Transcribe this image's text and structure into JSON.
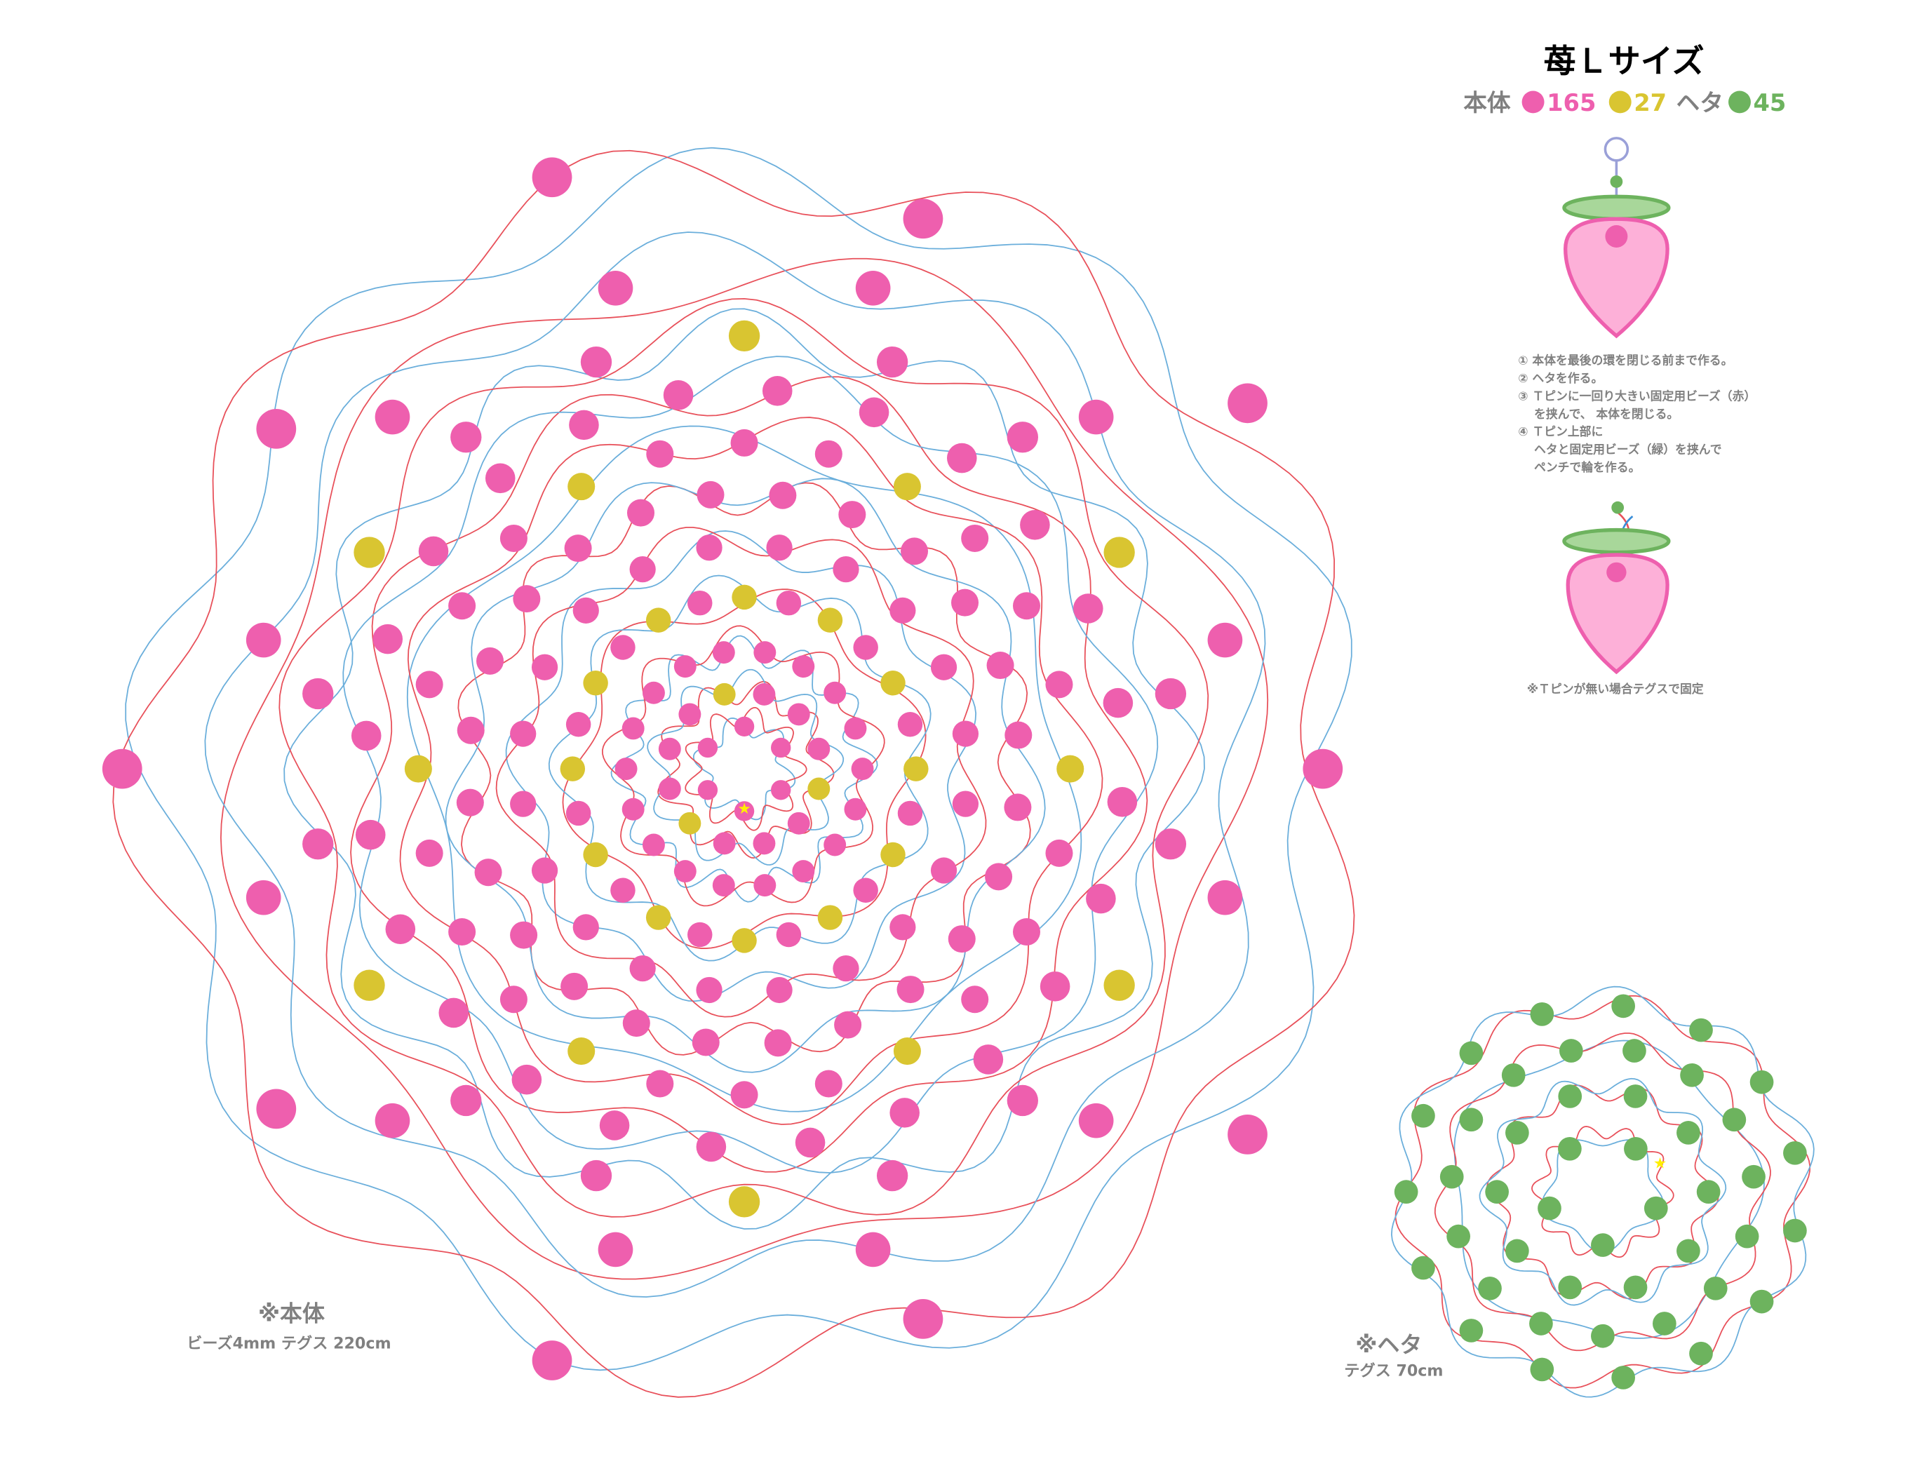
{
  "title": "苺Ｌサイズ",
  "counts": {
    "body_label": "本体",
    "pink_count": "165",
    "yellow_count": "27",
    "heta_label": "ヘタ",
    "green_count": "45"
  },
  "instructions": [
    "① 本体を最後の環を閉じる前まで作る。",
    "② ヘタを作る。",
    "③ Ｔピンに一回り大きい固定用ビーズ（赤）",
    "　 を挟んで、 本体を閉じる。",
    "④ Ｔピン上部に",
    "　 ヘタと固定用ビーズ（緑）を挟んで",
    "　 ペンチで輪を作る。"
  ],
  "note": "※Ｔピンが無い場合テグスで固定",
  "body_caption": {
    "title": "※本体",
    "detail": "ビーズ4mm  テグス 220cm"
  },
  "heta_caption": {
    "title": "※ヘタ",
    "detail": "テグス 70cm"
  },
  "colors": {
    "pink": "#EE5FAE",
    "yellow": "#D9C531",
    "green": "#6DB35E",
    "red_thread": "#E8505A",
    "blue_thread": "#6AAEDB",
    "text_gray": "#808080"
  }
}
